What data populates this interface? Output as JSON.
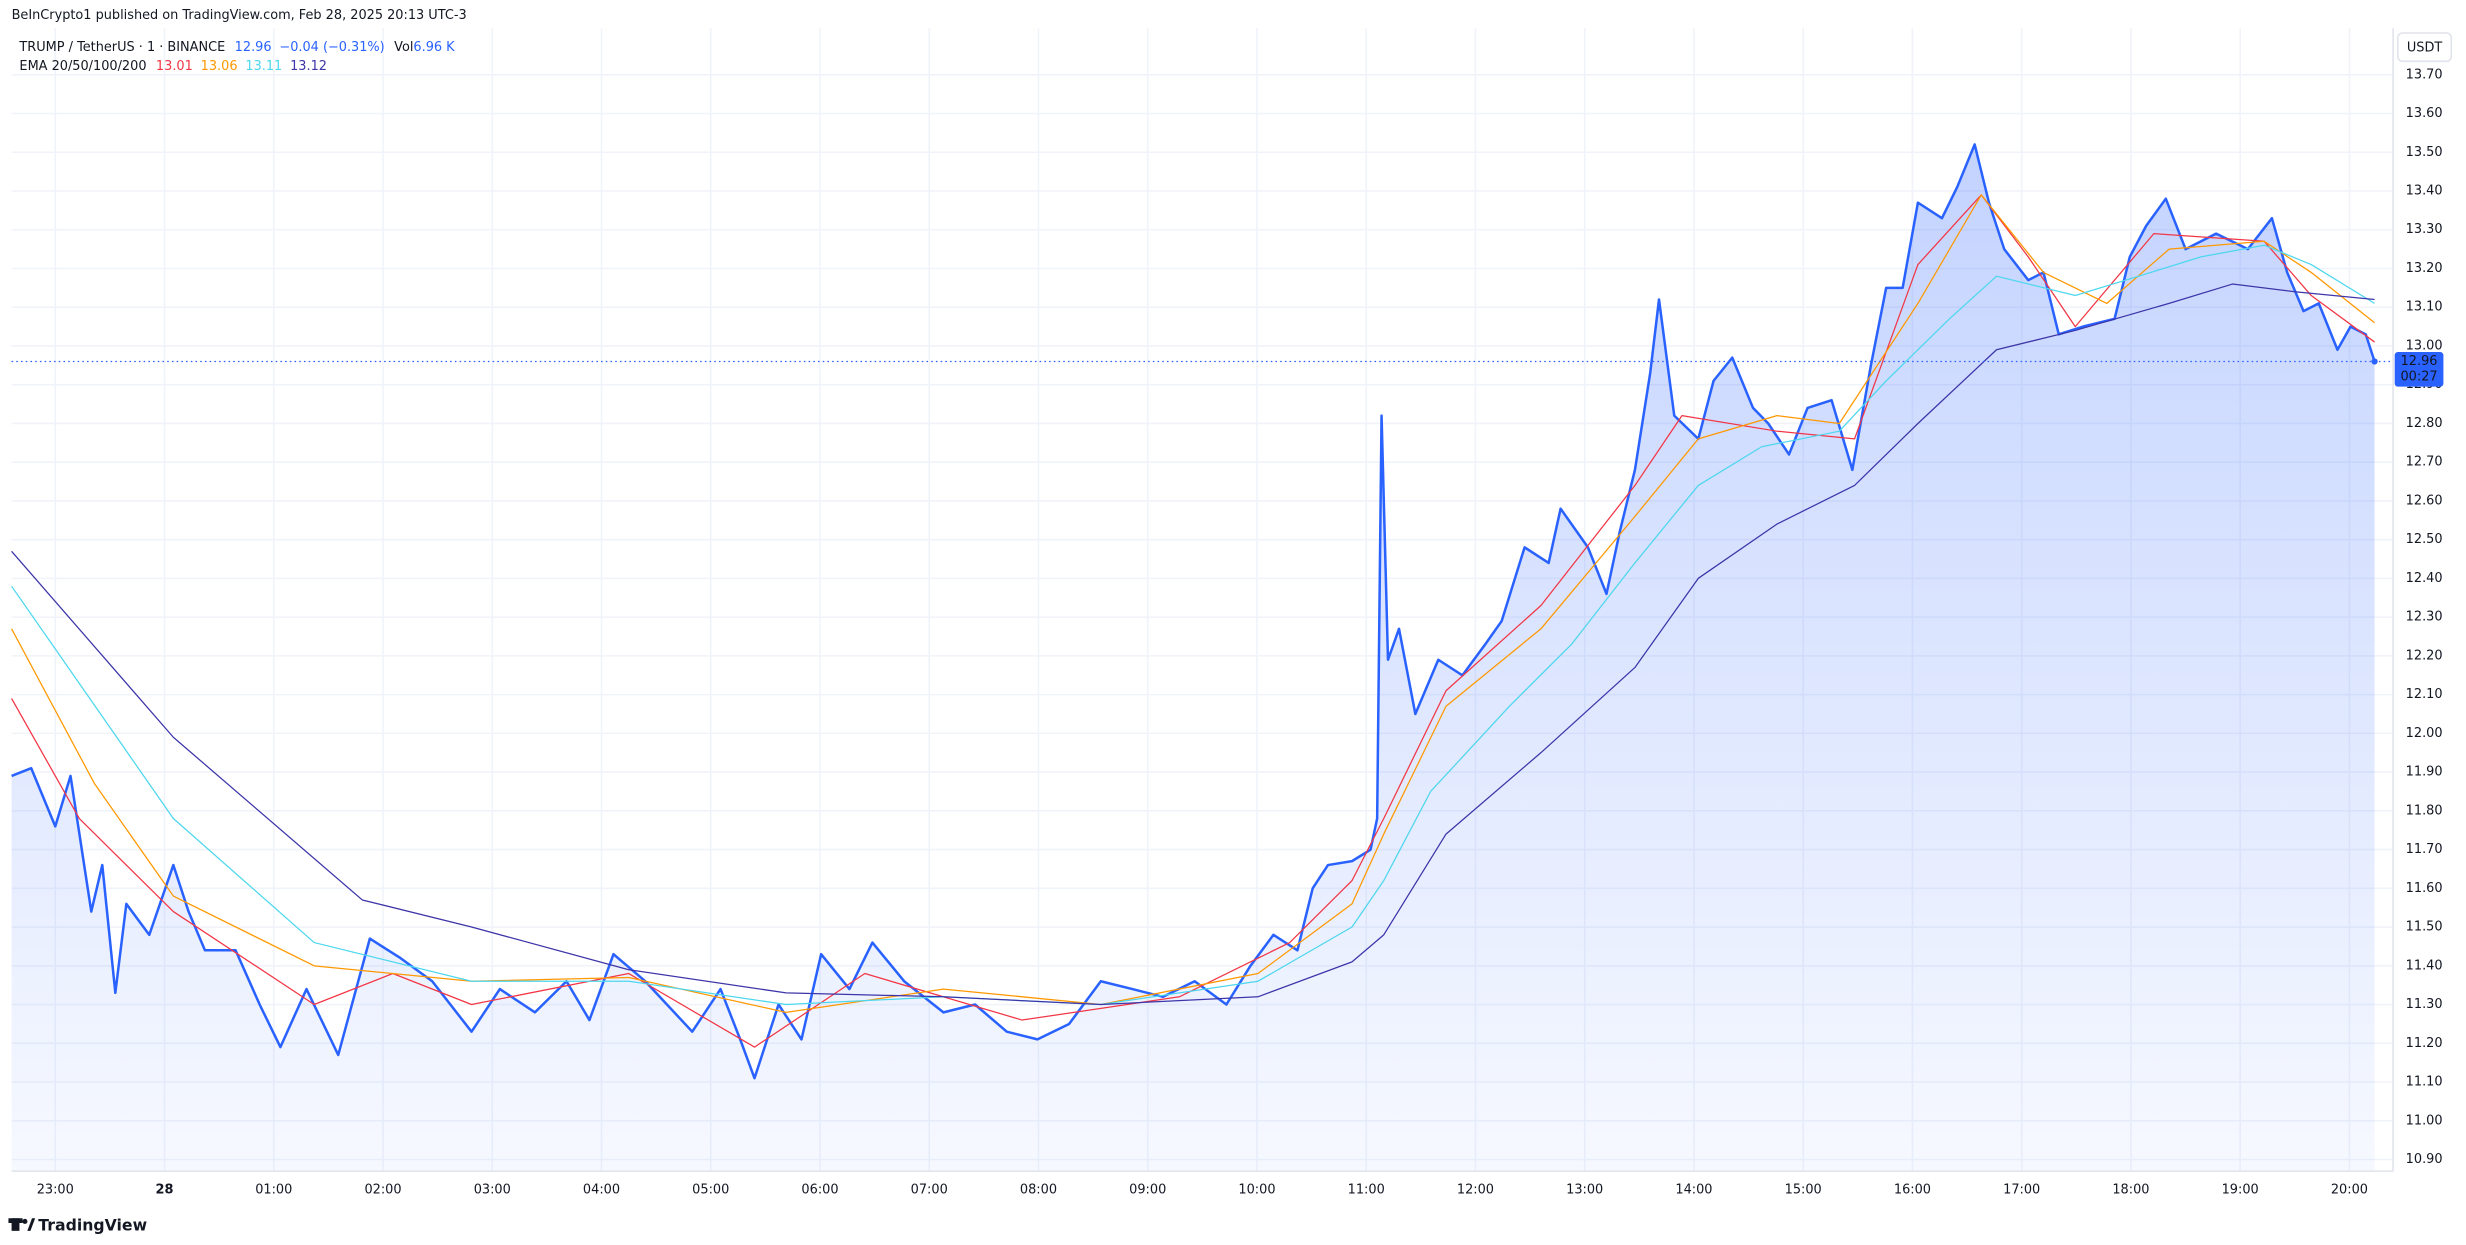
{
  "chart_data": {
    "type": "line",
    "publisher": "BeInCrypto1 published on TradingView.com, Feb 28, 2025 20:13 UTC-3",
    "symbol": "TRUMP / TetherUS · 1 · BINANCE",
    "last_price": 12.96,
    "change": "−0.04 (−0.31%)",
    "volume_label": "Vol",
    "volume": "6.96 K",
    "indicator": "EMA 20/50/100/200",
    "indicator_values": [
      13.01,
      13.06,
      13.11,
      13.12
    ],
    "currency": "USDT",
    "countdown": "00:27",
    "brand": "TradingView",
    "grid": true,
    "xlim": [
      -1.4,
      20.4
    ],
    "xticks": [
      {
        "value": -1,
        "label": "23:00"
      },
      {
        "value": 0,
        "label": "28"
      },
      {
        "value": 1,
        "label": "01:00"
      },
      {
        "value": 2,
        "label": "02:00"
      },
      {
        "value": 3,
        "label": "03:00"
      },
      {
        "value": 4,
        "label": "04:00"
      },
      {
        "value": 5,
        "label": "05:00"
      },
      {
        "value": 6,
        "label": "06:00"
      },
      {
        "value": 7,
        "label": "07:00"
      },
      {
        "value": 8,
        "label": "08:00"
      },
      {
        "value": 9,
        "label": "09:00"
      },
      {
        "value": 10,
        "label": "10:00"
      },
      {
        "value": 11,
        "label": "11:00"
      },
      {
        "value": 12,
        "label": "12:00"
      },
      {
        "value": 13,
        "label": "13:00"
      },
      {
        "value": 14,
        "label": "14:00"
      },
      {
        "value": 15,
        "label": "15:00"
      },
      {
        "value": 16,
        "label": "16:00"
      },
      {
        "value": 17,
        "label": "17:00"
      },
      {
        "value": 18,
        "label": "18:00"
      },
      {
        "value": 19,
        "label": "19:00"
      },
      {
        "value": 20,
        "label": "20:00"
      }
    ],
    "ylim": [
      10.87,
      13.82
    ],
    "yticks": [
      {
        "value": 10.9,
        "label": "10.90"
      },
      {
        "value": 11.0,
        "label": "11.00"
      },
      {
        "value": 11.1,
        "label": "11.10"
      },
      {
        "value": 11.2,
        "label": "11.20"
      },
      {
        "value": 11.3,
        "label": "11.30"
      },
      {
        "value": 11.4,
        "label": "11.40"
      },
      {
        "value": 11.5,
        "label": "11.50"
      },
      {
        "value": 11.6,
        "label": "11.60"
      },
      {
        "value": 11.7,
        "label": "11.70"
      },
      {
        "value": 11.8,
        "label": "11.80"
      },
      {
        "value": 11.9,
        "label": "11.90"
      },
      {
        "value": 12.0,
        "label": "12.00"
      },
      {
        "value": 12.1,
        "label": "12.10"
      },
      {
        "value": 12.2,
        "label": "12.20"
      },
      {
        "value": 12.3,
        "label": "12.30"
      },
      {
        "value": 12.4,
        "label": "12.40"
      },
      {
        "value": 12.5,
        "label": "12.50"
      },
      {
        "value": 12.6,
        "label": "12.60"
      },
      {
        "value": 12.7,
        "label": "12.70"
      },
      {
        "value": 12.8,
        "label": "12.80"
      },
      {
        "value": 12.9,
        "label": "12.90"
      },
      {
        "value": 13.0,
        "label": "13.00"
      },
      {
        "value": 13.1,
        "label": "13.10"
      },
      {
        "value": 13.2,
        "label": "13.20"
      },
      {
        "value": 13.3,
        "label": "13.30"
      },
      {
        "value": 13.4,
        "label": "13.40"
      },
      {
        "value": 13.5,
        "label": "13.50"
      },
      {
        "value": 13.6,
        "label": "13.60"
      },
      {
        "value": 13.7,
        "label": "13.70"
      }
    ],
    "series": [
      {
        "color": "#2962ff",
        "fill": true,
        "x": [
          -1.4,
          -1.22,
          -1.0,
          -0.86,
          -0.67,
          -0.57,
          -0.45,
          -0.35,
          -0.14,
          0.08,
          0.22,
          0.37,
          0.65,
          0.87,
          1.06,
          1.3,
          1.59,
          1.88,
          2.16,
          2.45,
          2.81,
          3.07,
          3.39,
          3.68,
          3.89,
          4.11,
          4.4,
          4.83,
          5.09,
          5.27,
          5.4,
          5.62,
          5.83,
          6.01,
          6.27,
          6.48,
          6.77,
          7.13,
          7.42,
          7.71,
          7.99,
          8.28,
          8.57,
          8.86,
          9.14,
          9.43,
          9.72,
          9.94,
          10.15,
          10.37,
          10.51,
          10.65,
          10.87,
          11.04,
          11.1,
          11.14,
          11.2,
          11.3,
          11.45,
          11.66,
          11.88,
          12.09,
          12.24,
          12.45,
          12.67,
          12.78,
          13.03,
          13.2,
          13.32,
          13.46,
          13.6,
          13.68,
          13.82,
          14.04,
          14.18,
          14.35,
          14.54,
          14.68,
          14.87,
          15.04,
          15.26,
          15.45,
          15.62,
          15.76,
          15.91,
          16.05,
          16.27,
          16.41,
          16.57,
          16.7,
          16.84,
          17.06,
          17.2,
          17.34,
          17.56,
          17.85,
          17.99,
          18.14,
          18.32,
          18.5,
          18.78,
          19.07,
          19.29,
          19.43,
          19.58,
          19.72,
          19.89,
          20.01,
          20.15,
          20.23
        ],
        "values": [
          11.89,
          11.91,
          11.76,
          11.89,
          11.54,
          11.66,
          11.33,
          11.56,
          11.48,
          11.66,
          11.54,
          11.44,
          11.44,
          11.3,
          11.19,
          11.34,
          11.17,
          11.47,
          11.42,
          11.36,
          11.23,
          11.34,
          11.28,
          11.36,
          11.26,
          11.43,
          11.36,
          11.23,
          11.34,
          11.21,
          11.11,
          11.3,
          11.21,
          11.43,
          11.34,
          11.46,
          11.36,
          11.28,
          11.3,
          11.23,
          11.21,
          11.25,
          11.36,
          11.34,
          11.32,
          11.36,
          11.3,
          11.4,
          11.48,
          11.44,
          11.6,
          11.66,
          11.67,
          11.7,
          11.78,
          12.82,
          12.19,
          12.27,
          12.05,
          12.19,
          12.15,
          12.23,
          12.29,
          12.48,
          12.44,
          12.58,
          12.48,
          12.36,
          12.52,
          12.68,
          12.93,
          13.12,
          12.82,
          12.76,
          12.91,
          12.97,
          12.84,
          12.8,
          12.72,
          12.84,
          12.86,
          12.68,
          12.95,
          13.15,
          13.15,
          13.37,
          13.33,
          13.41,
          13.52,
          13.37,
          13.25,
          13.17,
          13.19,
          13.03,
          13.05,
          13.07,
          13.23,
          13.31,
          13.38,
          13.25,
          13.29,
          13.25,
          13.33,
          13.19,
          13.09,
          13.11,
          12.99,
          13.05,
          13.03,
          12.96
        ]
      },
      {
        "color": "#f23645",
        "x": [
          -1.4,
          -0.78,
          0.08,
          1.37,
          2.09,
          2.81,
          4.25,
          5.4,
          6.41,
          7.85,
          9.29,
          10.3,
          10.87,
          11.16,
          11.73,
          12.6,
          13.46,
          13.89,
          14.76,
          15.47,
          16.05,
          16.63,
          17.06,
          17.49,
          18.21,
          19.22,
          19.65,
          20.23
        ],
        "values": [
          12.09,
          11.78,
          11.54,
          11.3,
          11.38,
          11.3,
          11.38,
          11.19,
          11.38,
          11.26,
          11.32,
          11.46,
          11.62,
          11.78,
          12.11,
          12.33,
          12.64,
          12.82,
          12.78,
          12.76,
          13.21,
          13.39,
          13.23,
          13.05,
          13.29,
          13.27,
          13.13,
          13.01
        ]
      },
      {
        "color": "#ff9800",
        "x": [
          -1.4,
          -0.64,
          0.08,
          1.37,
          2.81,
          4.25,
          5.69,
          7.13,
          8.57,
          10.01,
          10.87,
          11.16,
          11.73,
          12.6,
          13.46,
          14.04,
          14.76,
          15.33,
          16.05,
          16.63,
          17.2,
          17.78,
          18.35,
          19.22,
          19.65,
          20.23
        ],
        "values": [
          12.27,
          11.87,
          11.58,
          11.4,
          11.36,
          11.37,
          11.28,
          11.34,
          11.3,
          11.38,
          11.56,
          11.74,
          12.07,
          12.27,
          12.56,
          12.76,
          12.82,
          12.8,
          13.11,
          13.39,
          13.19,
          13.11,
          13.25,
          13.27,
          13.19,
          13.06
        ]
      },
      {
        "color": "#4dd7ee",
        "x": [
          -1.4,
          0.08,
          1.37,
          2.81,
          4.25,
          5.69,
          7.13,
          8.57,
          10.01,
          10.87,
          11.16,
          11.59,
          12.31,
          12.88,
          13.46,
          14.04,
          14.62,
          15.33,
          15.76,
          16.34,
          16.77,
          17.49,
          18.07,
          18.64,
          19.22,
          19.65,
          20.23
        ],
        "values": [
          12.38,
          11.78,
          11.46,
          11.36,
          11.36,
          11.3,
          11.32,
          11.3,
          11.36,
          11.5,
          11.62,
          11.85,
          12.07,
          12.23,
          12.44,
          12.64,
          12.74,
          12.78,
          12.91,
          13.07,
          13.18,
          13.13,
          13.18,
          13.23,
          13.26,
          13.21,
          13.11
        ]
      },
      {
        "color": "#3d35a8",
        "x": [
          -1.4,
          0.08,
          1.81,
          2.81,
          4.25,
          5.69,
          7.13,
          8.57,
          10.01,
          10.87,
          11.16,
          11.73,
          12.6,
          13.46,
          14.04,
          14.76,
          15.47,
          16.05,
          16.77,
          17.49,
          18.35,
          18.93,
          19.5,
          20.23
        ],
        "values": [
          12.47,
          11.99,
          11.57,
          11.5,
          11.39,
          11.33,
          11.32,
          11.3,
          11.32,
          11.41,
          11.48,
          11.74,
          11.95,
          12.17,
          12.4,
          12.54,
          12.64,
          12.8,
          12.99,
          13.04,
          13.11,
          13.16,
          13.14,
          13.12
        ]
      }
    ]
  }
}
